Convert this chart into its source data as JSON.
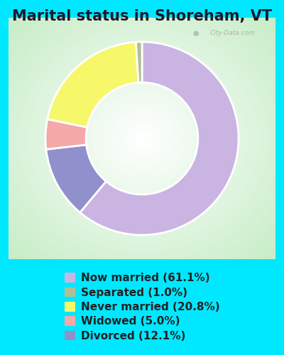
{
  "title": "Marital status in Shoreham, VT",
  "slices": [
    61.1,
    1.0,
    20.8,
    5.0,
    12.1
  ],
  "labels": [
    "Now married (61.1%)",
    "Separated (1.0%)",
    "Never married (20.8%)",
    "Widowed (5.0%)",
    "Divorced (12.1%)"
  ],
  "colors": [
    "#c9b4e2",
    "#b0be94",
    "#f7f76a",
    "#f4a8a8",
    "#9090cc"
  ],
  "background_color": "#00e8ff",
  "chart_bg_color": "#e8f5e8",
  "title_fontsize": 15,
  "legend_fontsize": 11,
  "watermark": "City-Data.com",
  "donut_width": 0.42,
  "startangle": 90
}
